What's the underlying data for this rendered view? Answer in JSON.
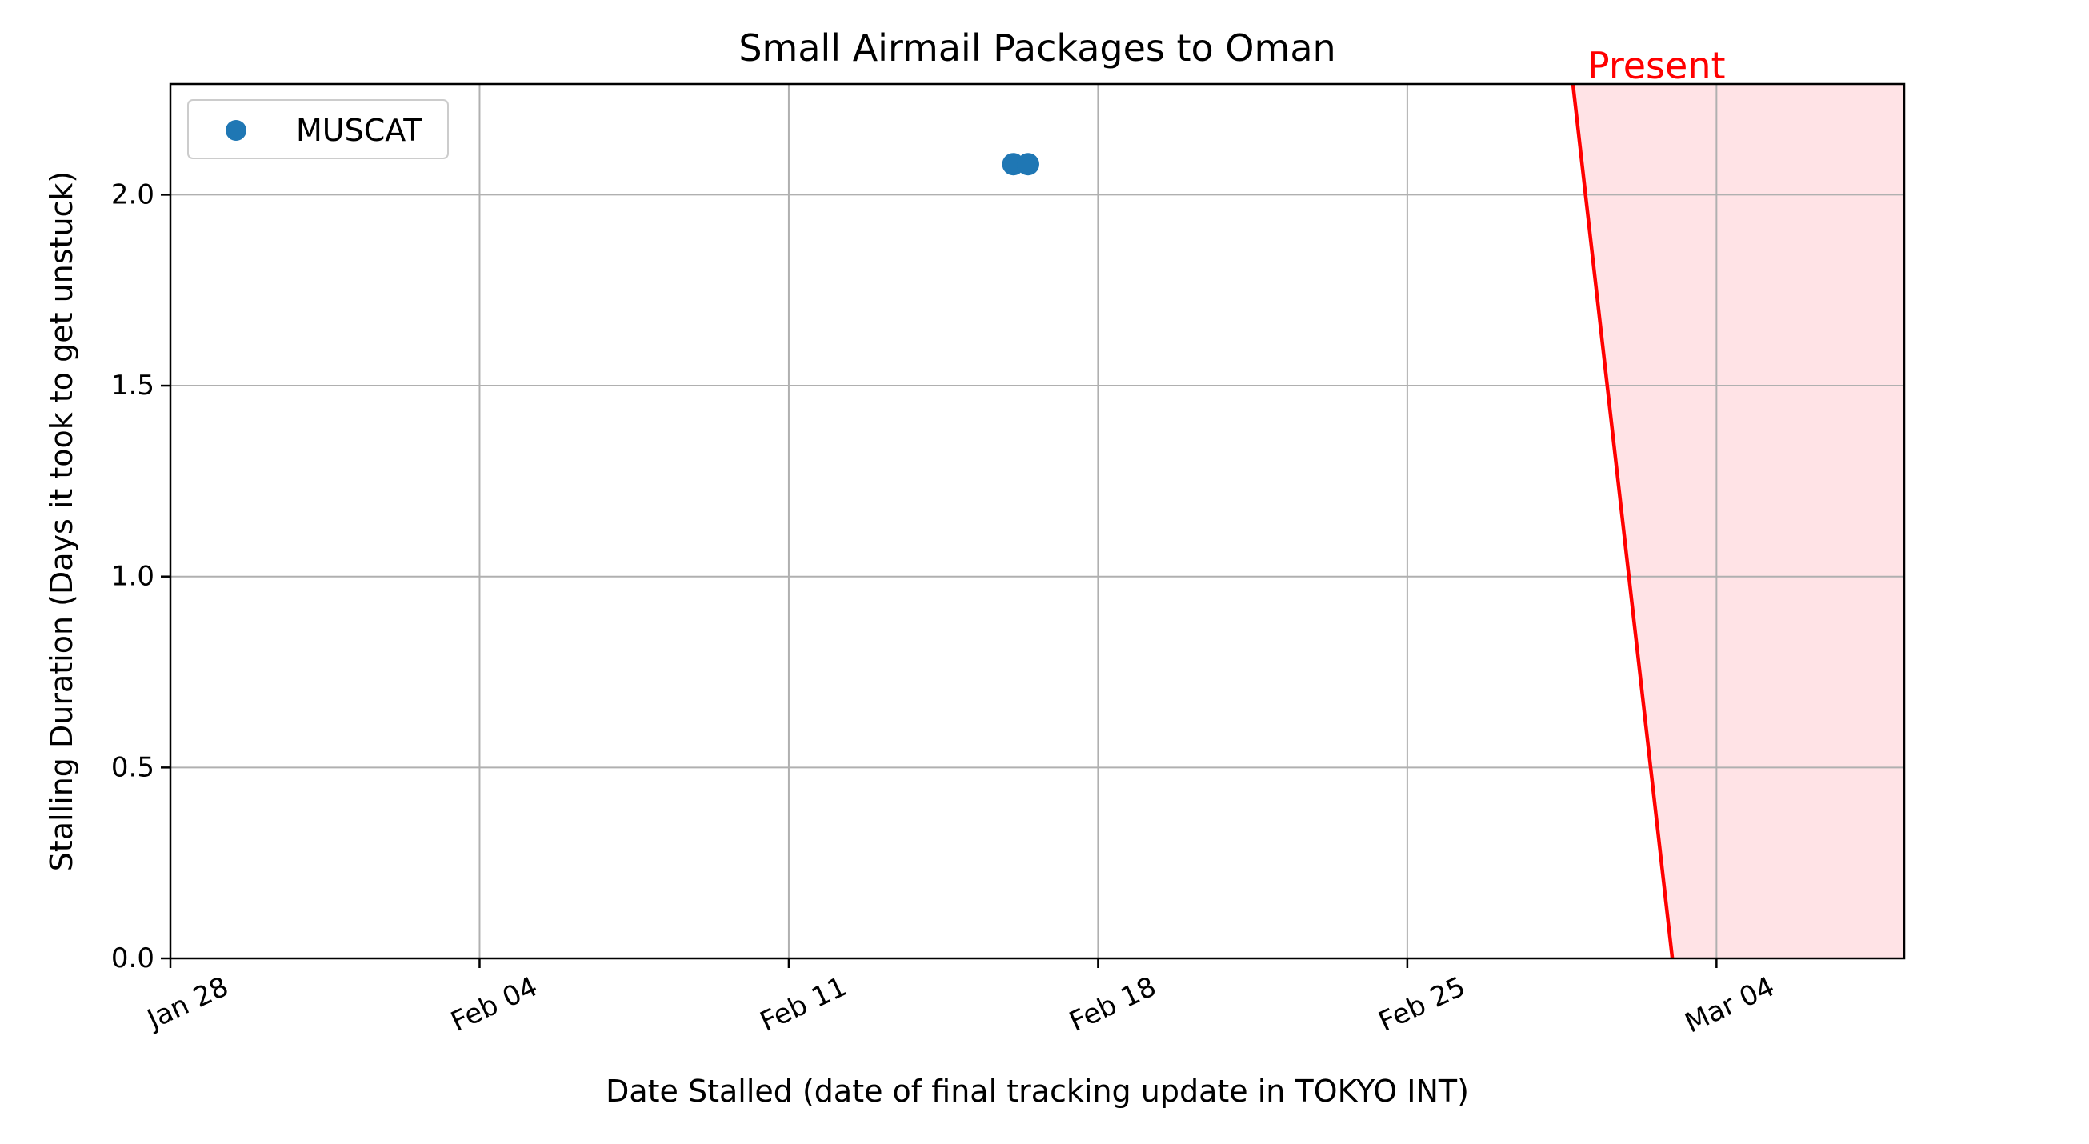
{
  "chart_data": {
    "type": "scatter",
    "title": "Small Airmail Packages to Oman",
    "xlabel": "Date Stalled (date of final tracking update in TOKYO INT)",
    "ylabel": "Stalling Duration (Days it took to get unstuck)",
    "x_type": "date",
    "xlim": [
      "2025-01-28",
      "2025-03-08T06:00"
    ],
    "ylim": [
      0,
      2.29
    ],
    "x_ticks": [
      {
        "date": "2025-01-28",
        "label": "Jan 28"
      },
      {
        "date": "2025-02-04",
        "label": "Feb 04"
      },
      {
        "date": "2025-02-11",
        "label": "Feb 11"
      },
      {
        "date": "2025-02-18",
        "label": "Feb 18"
      },
      {
        "date": "2025-02-25",
        "label": "Feb 25"
      },
      {
        "date": "2025-03-04",
        "label": "Mar 04"
      }
    ],
    "y_ticks": [
      0.0,
      0.5,
      1.0,
      1.5,
      2.0
    ],
    "y_tick_labels": [
      "0.0",
      "0.5",
      "1.0",
      "1.5",
      "2.0"
    ],
    "grid": true,
    "legend_position": "top-left",
    "series": [
      {
        "name": "MUSCAT",
        "color": "#1f77b4",
        "points": [
          {
            "x": "2025-02-16T02:00",
            "y": 2.08
          },
          {
            "x": "2025-02-16T10:00",
            "y": 2.08
          }
        ]
      }
    ],
    "annotations": [
      {
        "text": "Present",
        "color": "#ff0000",
        "line": [
          {
            "x": "2025-02-28T18:00",
            "y": 2.29
          },
          {
            "x": "2025-03-03T00:00",
            "y": 0
          }
        ],
        "shaded_region_color": "#ffe3e6"
      }
    ]
  }
}
